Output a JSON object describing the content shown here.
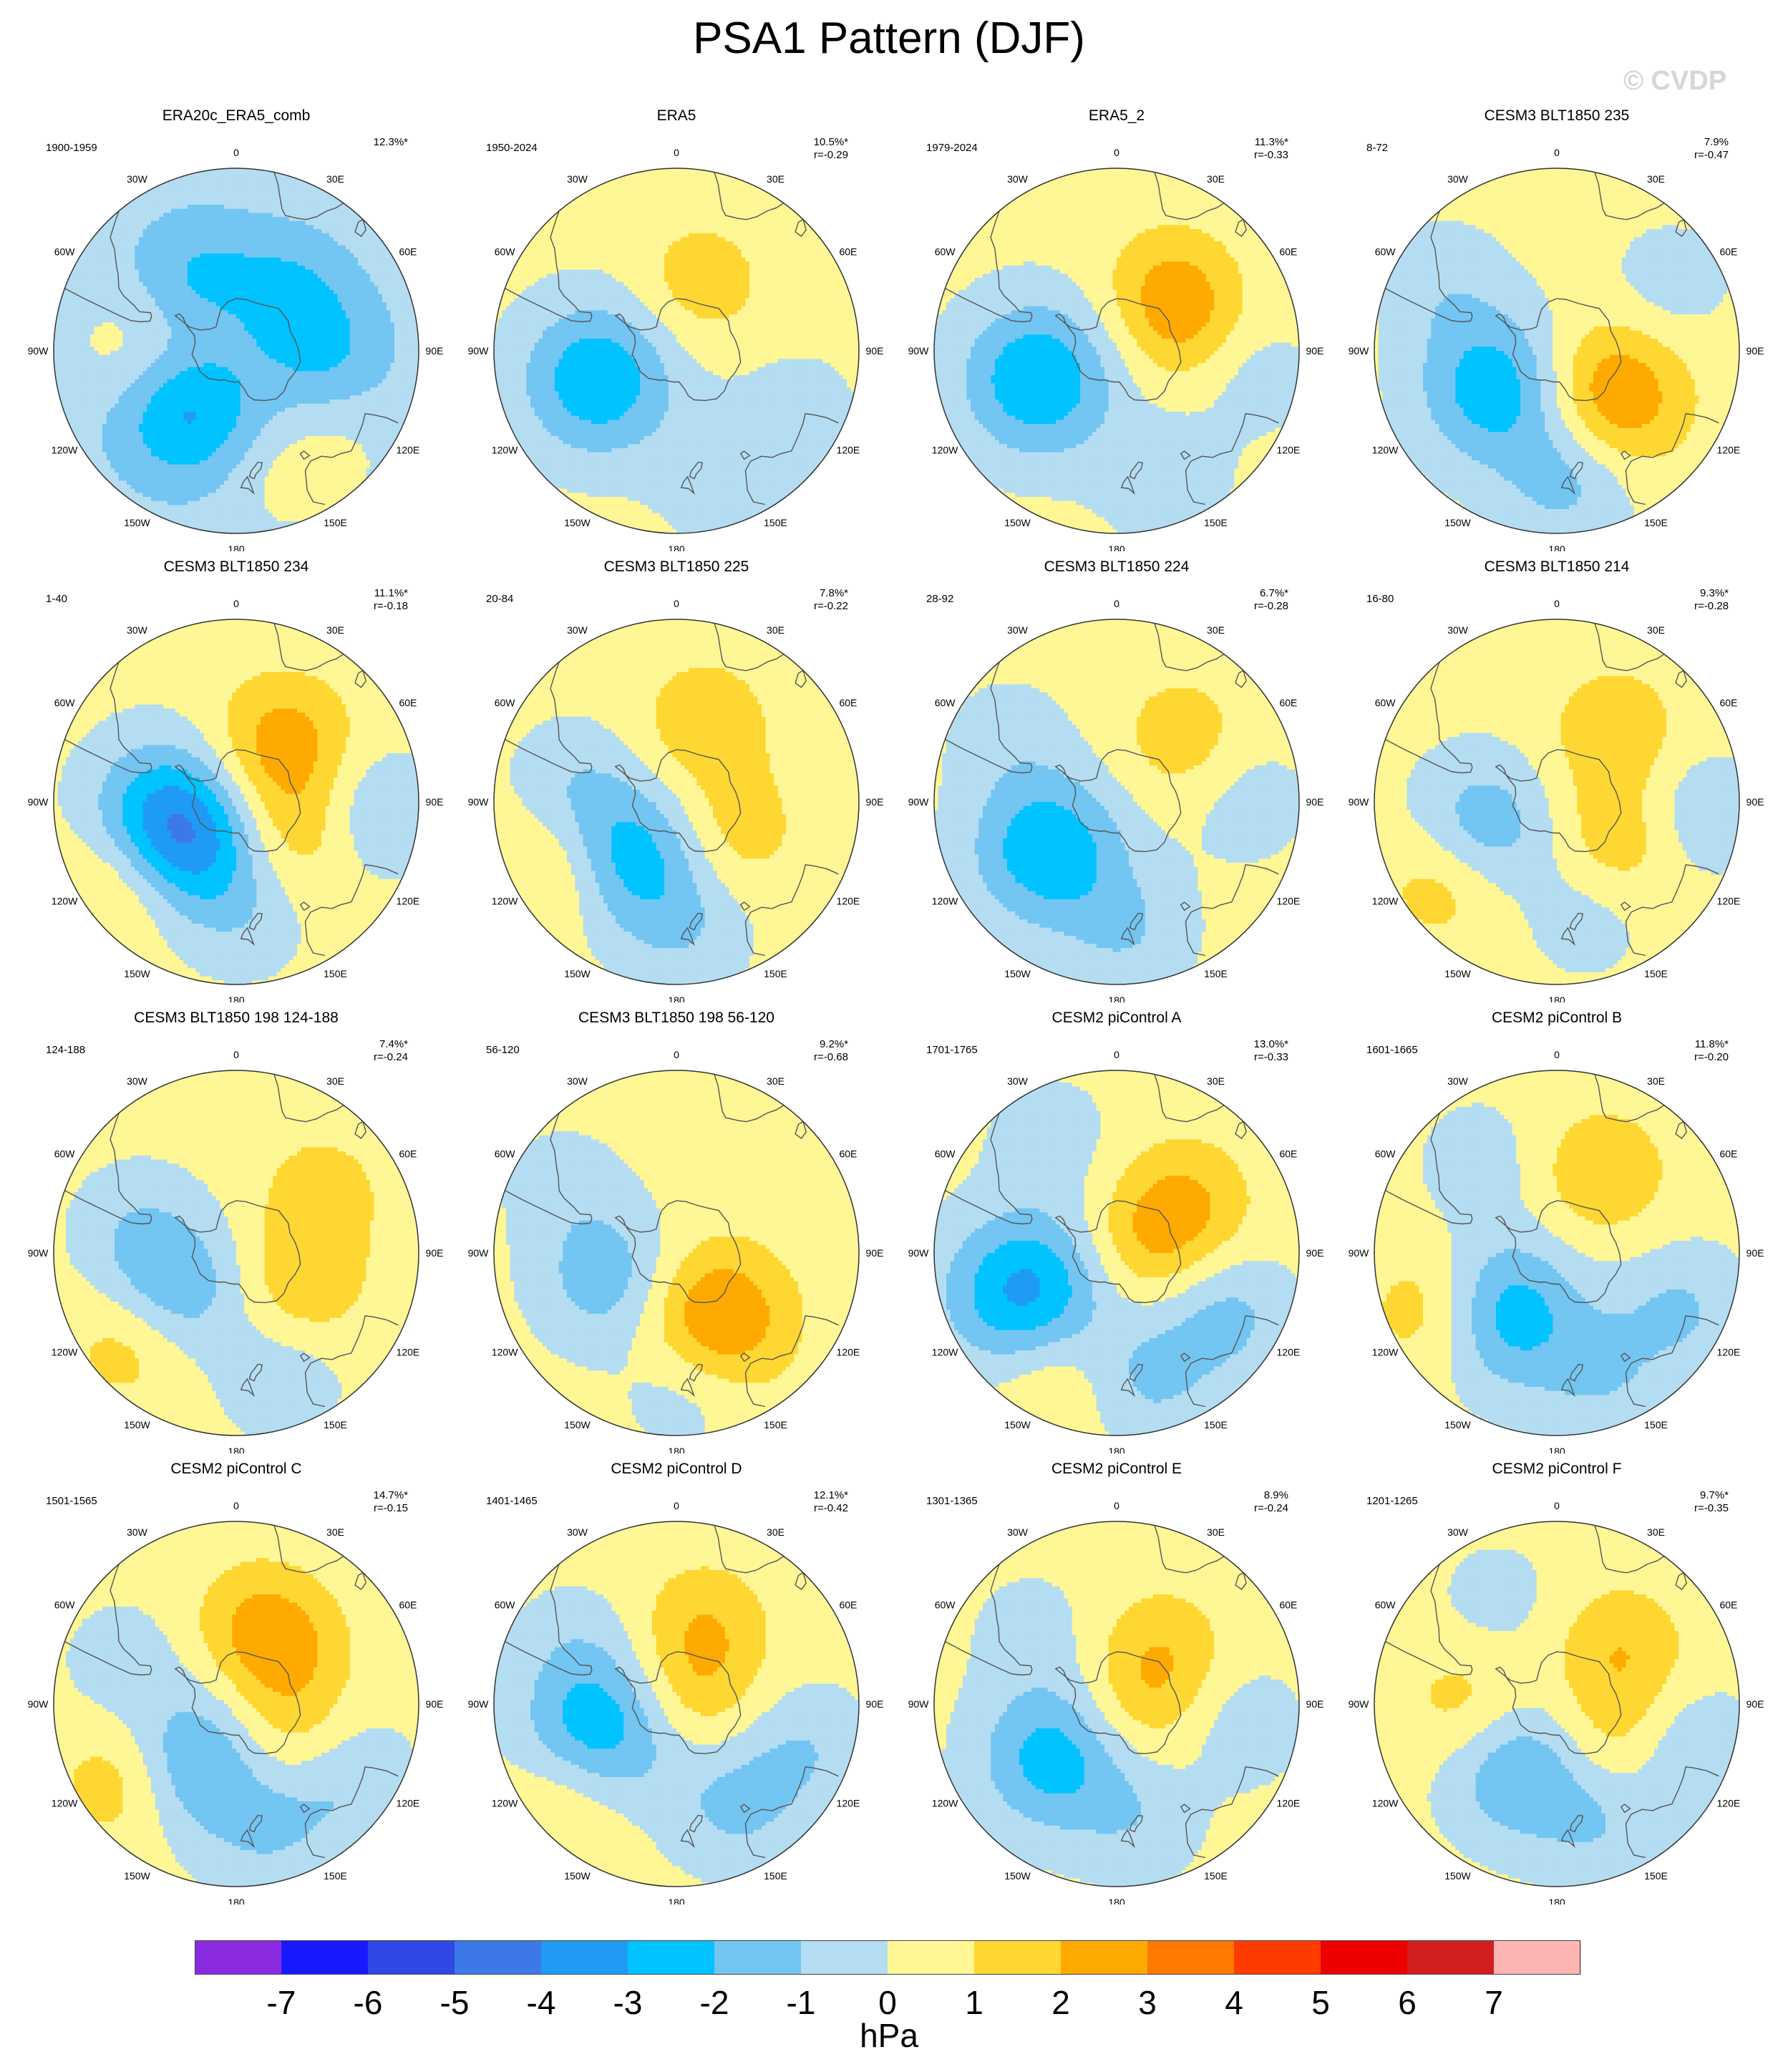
{
  "title": "PSA1 Pattern (DJF)",
  "watermark": "© CVDP",
  "colors": {
    "levels": [
      "#8a2be2",
      "#1919ff",
      "#2f48e6",
      "#3c78e8",
      "#1f9bf5",
      "#00c3ff",
      "#73c5f2",
      "#b4ddf2",
      "#fff696",
      "#ffd732",
      "#ffaa00",
      "#ff7800",
      "#ff3c00",
      "#ee0000",
      "#d21e1e",
      "#ffb4b4"
    ],
    "land_outline": "#555555",
    "frame": "#333333"
  },
  "lon_labels": [
    "0",
    "30E",
    "60E",
    "90E",
    "120E",
    "150E",
    "180",
    "150W",
    "120W",
    "90W",
    "60W",
    "30W"
  ],
  "colorbar": {
    "ticks": [
      "-7",
      "-6",
      "-5",
      "-4",
      "-3",
      "-2",
      "-1",
      "0",
      "1",
      "2",
      "3",
      "4",
      "5",
      "6",
      "7"
    ],
    "units": "hPa"
  },
  "chart_data": {
    "type": "heatmap",
    "variable": "PSA1 Pattern (DJF)",
    "units": "hPa",
    "contour_levels": [
      -7,
      -6,
      -5,
      -4,
      -3,
      -2,
      -1,
      0,
      1,
      2,
      3,
      4,
      5,
      6,
      7
    ],
    "panels": [
      {
        "title": "ERA20c_ERA5_comb",
        "years": "1900-1959",
        "pct": "12.3%*",
        "r": "",
        "base": -0.5,
        "features": [
          {
            "lon": -140,
            "lat": -60,
            "val": -2.8
          },
          {
            "lon": -90,
            "lat": -52,
            "val": 1.3
          },
          {
            "lon": -30,
            "lat": -58,
            "val": -1.6
          },
          {
            "lon": 40,
            "lat": -62,
            "val": -1.6
          },
          {
            "lon": 90,
            "lat": -55,
            "val": -1.4
          },
          {
            "lon": 160,
            "lat": -38,
            "val": 0.8
          },
          {
            "lon": -20,
            "lat": -80,
            "val": 0.5
          },
          {
            "lon": 135,
            "lat": -35,
            "val": 0.6
          }
        ]
      },
      {
        "title": "ERA5",
        "years": "1950-2024",
        "pct": "10.5%*",
        "r": "r=-0.29",
        "base": 0.3,
        "features": [
          {
            "lon": -110,
            "lat": -58,
            "val": -3.2
          },
          {
            "lon": 20,
            "lat": -62,
            "val": 1.3
          },
          {
            "lon": 160,
            "lat": -38,
            "val": -1.0
          },
          {
            "lon": 120,
            "lat": -38,
            "val": -0.9
          }
        ]
      },
      {
        "title": "ERA5_2",
        "years": "1979-2024",
        "pct": "11.3%*",
        "r": "r=-0.33",
        "base": 0.3,
        "features": [
          {
            "lon": -110,
            "lat": -58,
            "val": -3.3
          },
          {
            "lon": 40,
            "lat": -58,
            "val": 1.5
          },
          {
            "lon": 70,
            "lat": -62,
            "val": 1.3
          },
          {
            "lon": 160,
            "lat": -38,
            "val": -1.0
          },
          {
            "lon": 100,
            "lat": -38,
            "val": -0.8
          }
        ]
      },
      {
        "title": "CESM3 BLT1850 235",
        "years": "8-72",
        "pct": "7.9%",
        "r": "r=-0.47",
        "base": 0.3,
        "features": [
          {
            "lon": -120,
            "lat": -62,
            "val": -3.0
          },
          {
            "lon": 130,
            "lat": -62,
            "val": 2.8
          },
          {
            "lon": 175,
            "lat": -42,
            "val": -1.8
          },
          {
            "lon": -60,
            "lat": -40,
            "val": -0.9
          },
          {
            "lon": 60,
            "lat": -40,
            "val": -0.8
          }
        ]
      },
      {
        "title": "CESM3 BLT1850 234",
        "years": "1-40",
        "pct": "11.1%*",
        "r": "r=-0.18",
        "base": 0.3,
        "features": [
          {
            "lon": -100,
            "lat": -62,
            "val": -3.0
          },
          {
            "lon": -140,
            "lat": -65,
            "val": -2.5
          },
          {
            "lon": 40,
            "lat": -62,
            "val": 2.3
          },
          {
            "lon": 115,
            "lat": -62,
            "val": 1.5
          },
          {
            "lon": -125,
            "lat": -38,
            "val": 1.5
          },
          {
            "lon": 95,
            "lat": -40,
            "val": -1.5
          },
          {
            "lon": 175,
            "lat": -45,
            "val": -0.8
          }
        ]
      },
      {
        "title": "CESM3 BLT1850 225",
        "years": "20-84",
        "pct": "7.8%*",
        "r": "r=-0.22",
        "base": 0.3,
        "features": [
          {
            "lon": -140,
            "lat": -62,
            "val": -3.0
          },
          {
            "lon": 20,
            "lat": -58,
            "val": 1.5
          },
          {
            "lon": 115,
            "lat": -65,
            "val": 1.3
          },
          {
            "lon": -120,
            "lat": -38,
            "val": 1.5
          },
          {
            "lon": 175,
            "lat": -40,
            "val": -1.0
          },
          {
            "lon": -80,
            "lat": -50,
            "val": -1.0
          }
        ]
      },
      {
        "title": "CESM3 BLT1850 224",
        "years": "28-92",
        "pct": "6.7%*",
        "r": "r=-0.28",
        "base": 0.3,
        "features": [
          {
            "lon": -125,
            "lat": -58,
            "val": -3.2
          },
          {
            "lon": 45,
            "lat": -55,
            "val": 1.3
          },
          {
            "lon": 175,
            "lat": -40,
            "val": -1.2
          },
          {
            "lon": 90,
            "lat": -40,
            "val": -0.8
          },
          {
            "lon": -60,
            "lat": -42,
            "val": -0.7
          }
        ]
      },
      {
        "title": "CESM3 BLT1850 214",
        "years": "16-80",
        "pct": "9.3%*",
        "r": "r=-0.28",
        "base": 0.3,
        "features": [
          {
            "lon": -110,
            "lat": -60,
            "val": -2.2
          },
          {
            "lon": 40,
            "lat": -55,
            "val": 1.5
          },
          {
            "lon": 120,
            "lat": -62,
            "val": 1.5
          },
          {
            "lon": -125,
            "lat": -38,
            "val": 1.5
          },
          {
            "lon": 95,
            "lat": -38,
            "val": -1.2
          },
          {
            "lon": 165,
            "lat": -45,
            "val": -0.8
          }
        ]
      },
      {
        "title": "CESM3 BLT1850 198 124-188",
        "years": "124-188",
        "pct": "7.4%*",
        "r": "r=-0.24",
        "base": 0.3,
        "features": [
          {
            "lon": -120,
            "lat": -62,
            "val": -2.3
          },
          {
            "lon": 115,
            "lat": -62,
            "val": 1.5
          },
          {
            "lon": 55,
            "lat": -50,
            "val": 1.2
          },
          {
            "lon": -130,
            "lat": -38,
            "val": 1.5
          },
          {
            "lon": 160,
            "lat": -40,
            "val": -1.0
          },
          {
            "lon": -75,
            "lat": -50,
            "val": -0.9
          }
        ]
      },
      {
        "title": "CESM3 BLT1850 198 56-120",
        "years": "56-120",
        "pct": "9.2%*",
        "r": "r=-0.68",
        "base": 0.3,
        "features": [
          {
            "lon": -110,
            "lat": -62,
            "val": -2.0
          },
          {
            "lon": 150,
            "lat": -60,
            "val": 3.0
          },
          {
            "lon": 175,
            "lat": -40,
            "val": -1.2
          },
          {
            "lon": -60,
            "lat": -40,
            "val": -0.7
          }
        ]
      },
      {
        "title": "CESM2 piControl A",
        "years": "1701-1765",
        "pct": "13.0%*",
        "r": "r=-0.33",
        "base": 0.3,
        "features": [
          {
            "lon": -115,
            "lat": -52,
            "val": -3.8
          },
          {
            "lon": 55,
            "lat": -58,
            "val": 1.8
          },
          {
            "lon": 80,
            "lat": -80,
            "val": 1.3
          },
          {
            "lon": -150,
            "lat": -40,
            "val": 1.3
          },
          {
            "lon": 120,
            "lat": -42,
            "val": -1.6
          },
          {
            "lon": 165,
            "lat": -40,
            "val": -1.4
          },
          {
            "lon": -30,
            "lat": -40,
            "val": -0.8
          }
        ]
      },
      {
        "title": "CESM2 piControl B",
        "years": "1601-1665",
        "pct": "11.8%*",
        "r": "r=-0.20",
        "base": 0.3,
        "features": [
          {
            "lon": -140,
            "lat": -60,
            "val": -3.0
          },
          {
            "lon": 30,
            "lat": -55,
            "val": 1.6
          },
          {
            "lon": -115,
            "lat": -38,
            "val": 1.6
          },
          {
            "lon": 115,
            "lat": -38,
            "val": -1.4
          },
          {
            "lon": 160,
            "lat": -40,
            "val": -1.2
          },
          {
            "lon": -40,
            "lat": -45,
            "val": -0.8
          }
        ]
      },
      {
        "title": "CESM2 piControl C",
        "years": "1501-1565",
        "pct": "14.7%*",
        "r": "r=-0.15",
        "base": 0.3,
        "features": [
          {
            "lon": -145,
            "lat": -62,
            "val": -2.6
          },
          {
            "lon": 15,
            "lat": -58,
            "val": 1.5
          },
          {
            "lon": 45,
            "lat": -62,
            "val": 1.3
          },
          {
            "lon": 120,
            "lat": -65,
            "val": 1.3
          },
          {
            "lon": -125,
            "lat": -38,
            "val": 1.6
          },
          {
            "lon": 125,
            "lat": -40,
            "val": -1.4
          },
          {
            "lon": 165,
            "lat": -40,
            "val": -1.2
          },
          {
            "lon": -70,
            "lat": -45,
            "val": -0.8
          }
        ]
      },
      {
        "title": "CESM2 piControl D",
        "years": "1401-1465",
        "pct": "12.1%*",
        "r": "r=-0.42",
        "base": 0.3,
        "features": [
          {
            "lon": -110,
            "lat": -58,
            "val": -3.2
          },
          {
            "lon": 20,
            "lat": -58,
            "val": 1.5
          },
          {
            "lon": 60,
            "lat": -82,
            "val": 1.3
          },
          {
            "lon": -130,
            "lat": -38,
            "val": 1.3
          },
          {
            "lon": 150,
            "lat": -45,
            "val": -1.5
          },
          {
            "lon": 110,
            "lat": -38,
            "val": -1.2
          },
          {
            "lon": -60,
            "lat": -45,
            "val": -0.7
          }
        ]
      },
      {
        "title": "CESM2 piControl E",
        "years": "1301-1365",
        "pct": "8.9%",
        "r": "r=-0.24",
        "base": 0.3,
        "features": [
          {
            "lon": -130,
            "lat": -58,
            "val": -2.8
          },
          {
            "lon": 40,
            "lat": -62,
            "val": 1.3
          },
          {
            "lon": 90,
            "lat": -80,
            "val": 1.2
          },
          {
            "lon": 170,
            "lat": -45,
            "val": -1.0
          },
          {
            "lon": 100,
            "lat": -42,
            "val": -0.9
          },
          {
            "lon": -50,
            "lat": -48,
            "val": -0.7
          }
        ]
      },
      {
        "title": "CESM2 piControl F",
        "years": "1201-1265",
        "pct": "9.7%*",
        "r": "r=-0.35",
        "base": 0.3,
        "features": [
          {
            "lon": -150,
            "lat": -60,
            "val": -2.3
          },
          {
            "lon": 50,
            "lat": -58,
            "val": 1.6
          },
          {
            "lon": 120,
            "lat": -62,
            "val": 1.3
          },
          {
            "lon": -90,
            "lat": -55,
            "val": 1.2
          },
          {
            "lon": 110,
            "lat": -38,
            "val": -1.4
          },
          {
            "lon": 160,
            "lat": -42,
            "val": -1.2
          },
          {
            "lon": -30,
            "lat": -45,
            "val": -0.7
          }
        ]
      }
    ]
  }
}
